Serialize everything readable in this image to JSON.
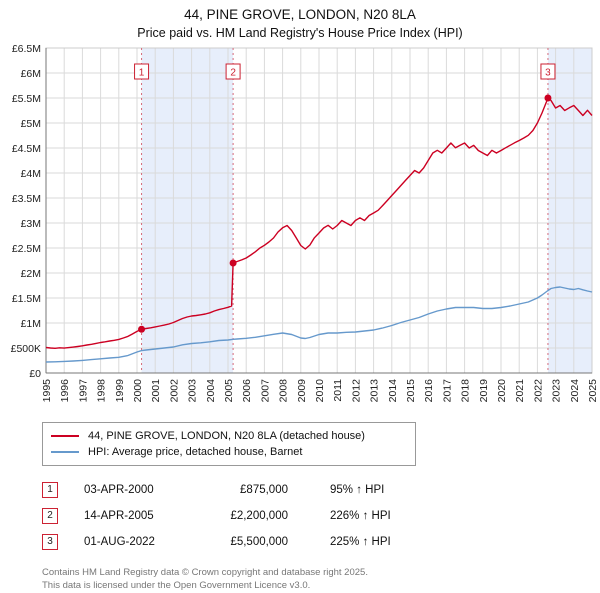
{
  "title": "44, PINE GROVE, LONDON, N20 8LA",
  "subtitle": "Price paid vs. HM Land Registry's House Price Index (HPI)",
  "chart_data": {
    "type": "line",
    "units": "GBP_thousands",
    "x_range": [
      1995,
      2025
    ],
    "y_range": [
      0,
      6500
    ],
    "y_tick_step": 500,
    "y_tick_labels": [
      "£0",
      "£500K",
      "£1M",
      "£1.5M",
      "£2M",
      "£2.5M",
      "£3M",
      "£3.5M",
      "£4M",
      "£4.5M",
      "£5M",
      "£5.5M",
      "£6M",
      "£6.5M"
    ],
    "grid": true,
    "grid_color": "#dadada",
    "band_color": "#e7eefb",
    "dashed_line_color": "#d46a7a",
    "bands": [
      [
        2000.25,
        2005.28
      ],
      [
        2022.58,
        2025
      ]
    ],
    "series": [
      {
        "name": "44, PINE GROVE, LONDON, N20 8LA (detached house)",
        "color": "#cc0022",
        "points": [
          [
            1995,
            510
          ],
          [
            1995.25,
            500
          ],
          [
            1995.5,
            495
          ],
          [
            1995.75,
            505
          ],
          [
            1996,
            498
          ],
          [
            1996.25,
            508
          ],
          [
            1996.5,
            518
          ],
          [
            1996.75,
            530
          ],
          [
            1997,
            545
          ],
          [
            1997.25,
            560
          ],
          [
            1997.5,
            575
          ],
          [
            1997.75,
            592
          ],
          [
            1998,
            610
          ],
          [
            1998.25,
            625
          ],
          [
            1998.5,
            640
          ],
          [
            1998.75,
            655
          ],
          [
            1999,
            672
          ],
          [
            1999.25,
            700
          ],
          [
            1999.5,
            732
          ],
          [
            1999.75,
            780
          ],
          [
            2000,
            832
          ],
          [
            2000.25,
            875
          ],
          [
            2000.5,
            890
          ],
          [
            2000.75,
            905
          ],
          [
            2001,
            922
          ],
          [
            2001.25,
            940
          ],
          [
            2001.5,
            958
          ],
          [
            2001.75,
            980
          ],
          [
            2002,
            1010
          ],
          [
            2002.25,
            1050
          ],
          [
            2002.5,
            1090
          ],
          [
            2002.75,
            1120
          ],
          [
            2003,
            1140
          ],
          [
            2003.25,
            1150
          ],
          [
            2003.5,
            1165
          ],
          [
            2003.75,
            1180
          ],
          [
            2004,
            1205
          ],
          [
            2004.25,
            1240
          ],
          [
            2004.5,
            1268
          ],
          [
            2004.75,
            1290
          ],
          [
            2005,
            1315
          ],
          [
            2005.2,
            1340
          ],
          [
            2005.28,
            2200
          ],
          [
            2005.5,
            2230
          ],
          [
            2005.75,
            2262
          ],
          [
            2006,
            2300
          ],
          [
            2006.25,
            2360
          ],
          [
            2006.5,
            2425
          ],
          [
            2006.75,
            2500
          ],
          [
            2007,
            2555
          ],
          [
            2007.25,
            2620
          ],
          [
            2007.5,
            2700
          ],
          [
            2007.75,
            2820
          ],
          [
            2008,
            2905
          ],
          [
            2008.25,
            2950
          ],
          [
            2008.5,
            2850
          ],
          [
            2008.75,
            2700
          ],
          [
            2009,
            2550
          ],
          [
            2009.25,
            2480
          ],
          [
            2009.5,
            2560
          ],
          [
            2009.75,
            2705
          ],
          [
            2010,
            2800
          ],
          [
            2010.25,
            2900
          ],
          [
            2010.5,
            2955
          ],
          [
            2010.75,
            2880
          ],
          [
            2011,
            2950
          ],
          [
            2011.25,
            3050
          ],
          [
            2011.5,
            3000
          ],
          [
            2011.75,
            2950
          ],
          [
            2012,
            3050
          ],
          [
            2012.25,
            3105
          ],
          [
            2012.5,
            3050
          ],
          [
            2012.75,
            3150
          ],
          [
            2013,
            3200
          ],
          [
            2013.25,
            3255
          ],
          [
            2013.5,
            3350
          ],
          [
            2013.75,
            3450
          ],
          [
            2014,
            3550
          ],
          [
            2014.25,
            3650
          ],
          [
            2014.5,
            3750
          ],
          [
            2014.75,
            3850
          ],
          [
            2015,
            3950
          ],
          [
            2015.25,
            4050
          ],
          [
            2015.5,
            4000
          ],
          [
            2015.75,
            4100
          ],
          [
            2016,
            4250
          ],
          [
            2016.25,
            4400
          ],
          [
            2016.5,
            4455
          ],
          [
            2016.75,
            4400
          ],
          [
            2017,
            4500
          ],
          [
            2017.25,
            4600
          ],
          [
            2017.5,
            4505
          ],
          [
            2017.75,
            4555
          ],
          [
            2018,
            4600
          ],
          [
            2018.25,
            4500
          ],
          [
            2018.5,
            4555
          ],
          [
            2018.75,
            4450
          ],
          [
            2019,
            4400
          ],
          [
            2019.25,
            4350
          ],
          [
            2019.5,
            4455
          ],
          [
            2019.75,
            4400
          ],
          [
            2020,
            4450
          ],
          [
            2020.25,
            4505
          ],
          [
            2020.5,
            4555
          ],
          [
            2020.75,
            4605
          ],
          [
            2021,
            4650
          ],
          [
            2021.25,
            4700
          ],
          [
            2021.5,
            4755
          ],
          [
            2021.75,
            4850
          ],
          [
            2022,
            5000
          ],
          [
            2022.25,
            5200
          ],
          [
            2022.58,
            5500
          ],
          [
            2022.75,
            5450
          ],
          [
            2023,
            5300
          ],
          [
            2023.25,
            5350
          ],
          [
            2023.5,
            5250
          ],
          [
            2023.75,
            5305
          ],
          [
            2024,
            5350
          ],
          [
            2024.25,
            5250
          ],
          [
            2024.5,
            5150
          ],
          [
            2024.75,
            5255
          ],
          [
            2025,
            5150
          ]
        ]
      },
      {
        "name": "HPI: Average price, detached house, Barnet",
        "color": "#6699cc",
        "points": [
          [
            1995,
            220
          ],
          [
            1995.5,
            225
          ],
          [
            1996,
            232
          ],
          [
            1996.5,
            240
          ],
          [
            1997,
            252
          ],
          [
            1997.5,
            268
          ],
          [
            1998,
            285
          ],
          [
            1998.5,
            300
          ],
          [
            1999,
            315
          ],
          [
            1999.5,
            350
          ],
          [
            2000,
            420
          ],
          [
            2000.25,
            449
          ],
          [
            2000.5,
            460
          ],
          [
            2001,
            480
          ],
          [
            2001.5,
            500
          ],
          [
            2002,
            520
          ],
          [
            2002.5,
            565
          ],
          [
            2003,
            590
          ],
          [
            2003.5,
            605
          ],
          [
            2004,
            625
          ],
          [
            2004.5,
            650
          ],
          [
            2005,
            660
          ],
          [
            2005.28,
            675
          ],
          [
            2005.5,
            680
          ],
          [
            2006,
            695
          ],
          [
            2006.5,
            715
          ],
          [
            2007,
            745
          ],
          [
            2007.5,
            775
          ],
          [
            2008,
            800
          ],
          [
            2008.5,
            770
          ],
          [
            2009,
            700
          ],
          [
            2009.25,
            690
          ],
          [
            2009.5,
            710
          ],
          [
            2010,
            770
          ],
          [
            2010.5,
            800
          ],
          [
            2011,
            800
          ],
          [
            2011.5,
            815
          ],
          [
            2012,
            820
          ],
          [
            2012.5,
            840
          ],
          [
            2013,
            860
          ],
          [
            2013.5,
            900
          ],
          [
            2014,
            950
          ],
          [
            2014.5,
            1010
          ],
          [
            2015,
            1060
          ],
          [
            2015.5,
            1110
          ],
          [
            2016,
            1180
          ],
          [
            2016.5,
            1240
          ],
          [
            2017,
            1280
          ],
          [
            2017.5,
            1310
          ],
          [
            2018,
            1310
          ],
          [
            2018.5,
            1310
          ],
          [
            2019,
            1290
          ],
          [
            2019.5,
            1290
          ],
          [
            2020,
            1310
          ],
          [
            2020.5,
            1340
          ],
          [
            2021,
            1380
          ],
          [
            2021.5,
            1420
          ],
          [
            2022,
            1500
          ],
          [
            2022.25,
            1560
          ],
          [
            2022.58,
            1650
          ],
          [
            2022.75,
            1690
          ],
          [
            2023,
            1710
          ],
          [
            2023.25,
            1720
          ],
          [
            2023.5,
            1700
          ],
          [
            2023.75,
            1680
          ],
          [
            2024,
            1670
          ],
          [
            2024.25,
            1690
          ],
          [
            2024.5,
            1665
          ],
          [
            2024.75,
            1640
          ],
          [
            2025,
            1620
          ]
        ]
      }
    ],
    "markers": [
      {
        "label": "1",
        "x": 2000.25,
        "value": 875
      },
      {
        "label": "2",
        "x": 2005.28,
        "value": 2200
      },
      {
        "label": "3",
        "x": 2022.58,
        "value": 5500
      }
    ]
  },
  "legend": {
    "items": [
      {
        "label": "44, PINE GROVE, LONDON, N20 8LA (detached house)"
      },
      {
        "label": "HPI: Average price, detached house, Barnet"
      }
    ]
  },
  "transactions": [
    {
      "num": "1",
      "date": "03-APR-2000",
      "price": "£875,000",
      "hpi": "95% ↑ HPI"
    },
    {
      "num": "2",
      "date": "14-APR-2005",
      "price": "£2,200,000",
      "hpi": "226% ↑ HPI"
    },
    {
      "num": "3",
      "date": "01-AUG-2022",
      "price": "£5,500,000",
      "hpi": "225% ↑ HPI"
    }
  ],
  "footer": {
    "line1": "Contains HM Land Registry data © Crown copyright and database right 2025.",
    "line2": "This data is licensed under the Open Government Licence v3.0."
  }
}
